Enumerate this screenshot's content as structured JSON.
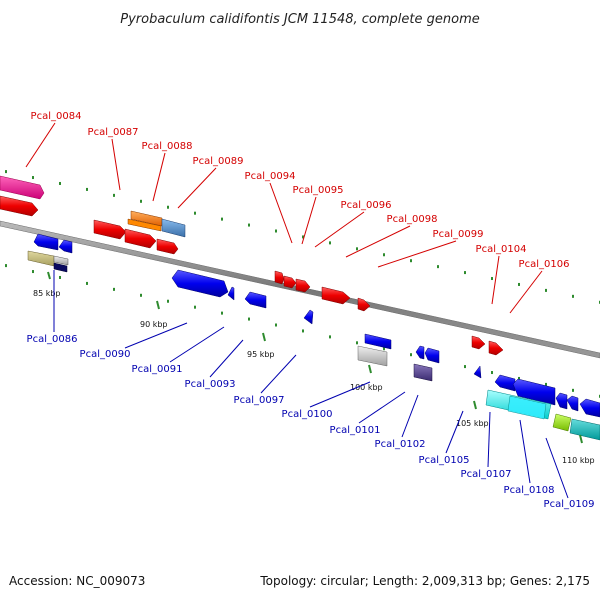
{
  "title": "Pyrobaculum calidifontis JCM 11548, complete genome",
  "accession_text": "Accession: NC_009073",
  "topology_text": "Topology: circular; Length: 2,009,313 bp; Genes: 2,175",
  "scale_labels": [
    "85 kbp",
    "90 kbp",
    "95 kbp",
    "100 kbp",
    "105 kbp",
    "110 kbp"
  ],
  "genes_top": [
    {
      "id": "Pcal_0084",
      "color": "#d40000"
    },
    {
      "id": "Pcal_0087",
      "color": "#d40000"
    },
    {
      "id": "Pcal_0088",
      "color": "#d40000"
    },
    {
      "id": "Pcal_0089",
      "color": "#d40000"
    },
    {
      "id": "Pcal_0094",
      "color": "#d40000"
    },
    {
      "id": "Pcal_0095",
      "color": "#d40000"
    },
    {
      "id": "Pcal_0096",
      "color": "#d40000"
    },
    {
      "id": "Pcal_0098",
      "color": "#d40000"
    },
    {
      "id": "Pcal_0099",
      "color": "#d40000"
    },
    {
      "id": "Pcal_0104",
      "color": "#d40000"
    },
    {
      "id": "Pcal_0106",
      "color": "#d40000"
    }
  ],
  "genes_bottom": [
    {
      "id": "Pcal_0086",
      "color": "#0000b0"
    },
    {
      "id": "Pcal_0090",
      "color": "#0000b0"
    },
    {
      "id": "Pcal_0091",
      "color": "#0000b0"
    },
    {
      "id": "Pcal_0093",
      "color": "#0000b0"
    },
    {
      "id": "Pcal_0097",
      "color": "#0000b0"
    },
    {
      "id": "Pcal_0100",
      "color": "#0000b0"
    },
    {
      "id": "Pcal_0101",
      "color": "#0000b0"
    },
    {
      "id": "Pcal_0102",
      "color": "#0000b0"
    },
    {
      "id": "Pcal_0105",
      "color": "#0000b0"
    },
    {
      "id": "Pcal_0107",
      "color": "#0000b0"
    },
    {
      "id": "Pcal_0108",
      "color": "#0000b0"
    },
    {
      "id": "Pcal_0109",
      "color": "#0000b0"
    }
  ],
  "colors": {
    "forward_strand": "#ff0000",
    "reverse_strand": "#0000ee",
    "backbone": "#888888",
    "tick": "#2e8b2e",
    "label_red": "#d40000",
    "label_blue": "#0000b0"
  }
}
